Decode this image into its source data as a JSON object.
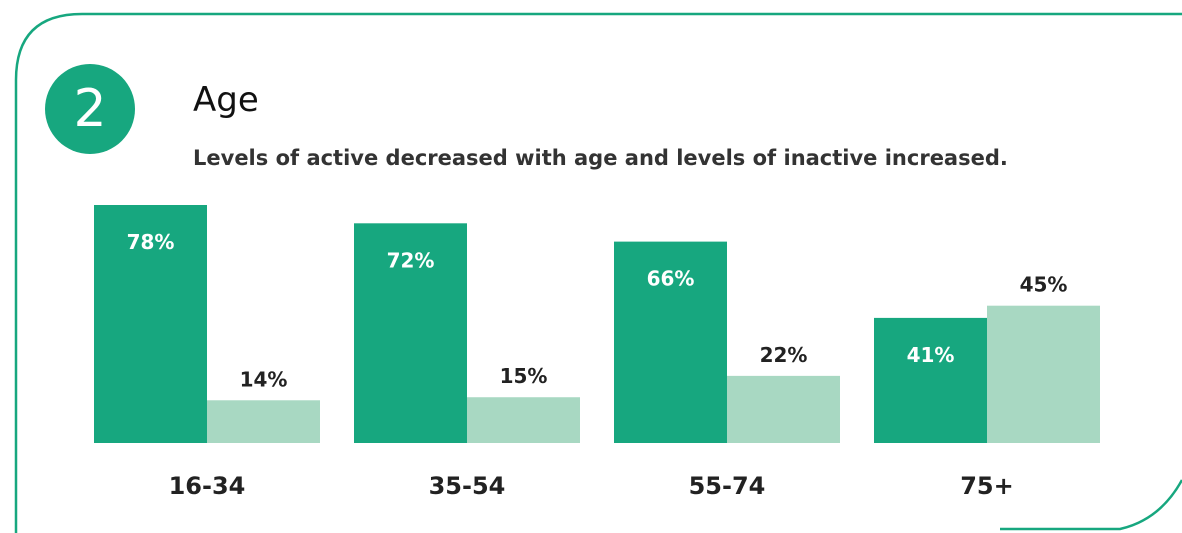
{
  "header": {
    "badge_number": "2",
    "title": "Age",
    "subtitle": "Levels of active decreased with age and levels of inactive increased."
  },
  "colors": {
    "accent": "#17a77f",
    "active": "#17a77f",
    "inactive": "#a8d8c2",
    "frame": "#17a77f"
  },
  "chart_data": {
    "type": "bar",
    "title": "Age",
    "subtitle": "Levels of active decreased with age and levels of inactive increased.",
    "categories": [
      "16-34",
      "35-54",
      "55-74",
      "75+"
    ],
    "series": [
      {
        "values": [
          78,
          72,
          66,
          41
        ],
        "labels": [
          "78%",
          "72%",
          "66%",
          "41%"
        ]
      },
      {
        "values": [
          14,
          15,
          22,
          45
        ],
        "labels": [
          "14%",
          "15%",
          "22%",
          "45%"
        ]
      }
    ],
    "ylim": [
      0,
      78
    ],
    "grid": false,
    "xlabel": "",
    "ylabel": ""
  }
}
